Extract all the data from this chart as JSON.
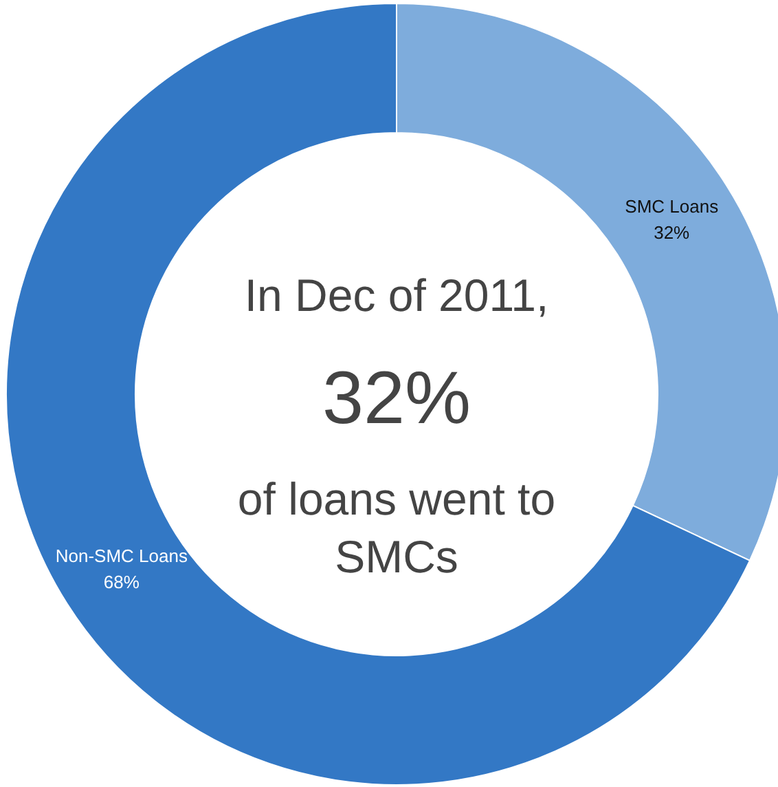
{
  "chart_data": {
    "type": "donut",
    "categories": [
      "SMC Loans",
      "Non-SMC Loans"
    ],
    "values": [
      32,
      68
    ],
    "colors": [
      "#7eacdc",
      "#3378c5"
    ],
    "value_labels": [
      "32%",
      "68%"
    ],
    "annotations": [
      "In Dec of 2011,",
      "32%",
      "of loans went to",
      "SMCs"
    ]
  }
}
